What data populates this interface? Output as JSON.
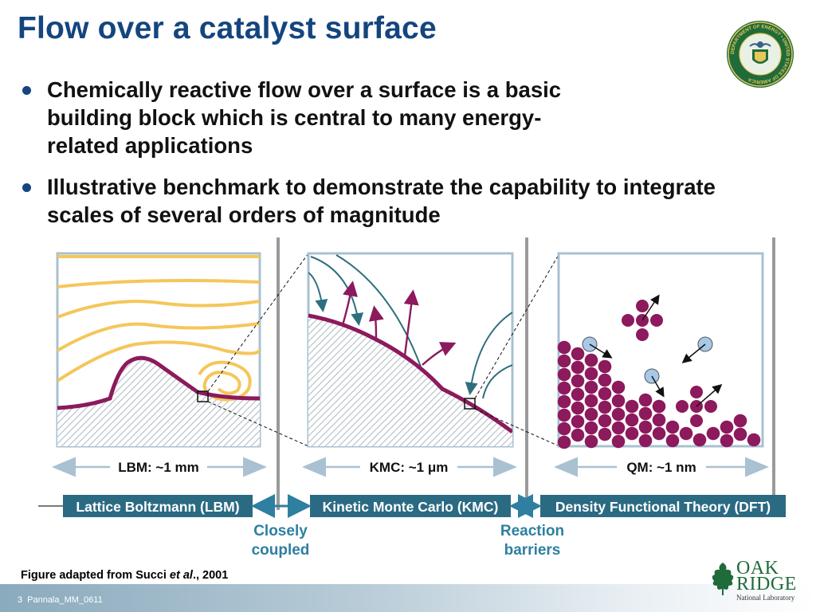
{
  "slide": {
    "title": "Flow over a catalyst surface",
    "bullets": [
      "Chemically reactive flow over a surface is a basic building block which is central to many energy-related applications",
      "Illustrative benchmark to demonstrate the capability to integrate scales of several orders of magnitude"
    ]
  },
  "panels": [
    {
      "scale_label": "LBM: ~1 mm",
      "method": "Lattice Boltzmann (LBM)"
    },
    {
      "scale_label": "KMC: ~1 μm",
      "method": "Kinetic Monte Carlo (KMC)"
    },
    {
      "scale_label": "QM: ~1 nm",
      "method": "Density Functional Theory (DFT)"
    }
  ],
  "couplings": [
    {
      "line1": "Closely",
      "line2": "coupled"
    },
    {
      "line1": "Reaction",
      "line2": "barriers"
    }
  ],
  "caption": {
    "prefix": "Figure adapted from Succi ",
    "italic": "et al",
    "suffix": "., 2001"
  },
  "footer": {
    "page": "3",
    "doc_id": "Pannala_MM_0611"
  },
  "logo": {
    "line1": "OAK",
    "line2": "RIDGE",
    "line3": "National Laboratory"
  },
  "seal_text": "DEPARTMENT OF ENERGY • UNITED STATES OF AMERICA",
  "colors": {
    "title": "#14457e",
    "method_box": "#2b6a83",
    "coupling_text": "#2e7fa0",
    "streamline": "#f5c65a",
    "surface": "#8c1a5c",
    "atom": "#8c1a5c",
    "adatom": "#a8c8e8",
    "flow_arrow": "#2e6f7f"
  }
}
